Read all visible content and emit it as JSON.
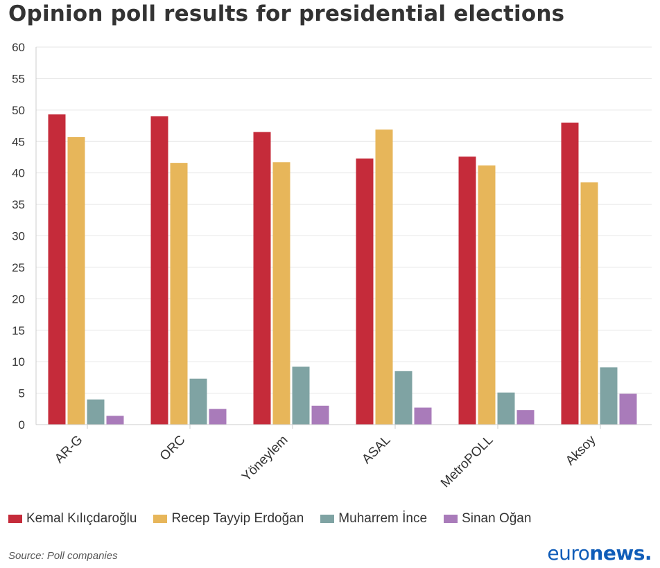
{
  "title": "Opinion poll results for presidential elections",
  "source": "Source: Poll companies",
  "logo": {
    "part1": "euro",
    "part2": "news."
  },
  "colors": {
    "series": [
      "#c52b3a",
      "#e7b65a",
      "#7fa3a3",
      "#a97bba"
    ],
    "grid": "#e6e6e6",
    "axis_text": "#333333"
  },
  "chart_data": {
    "type": "bar",
    "title": "Opinion poll results for presidential elections",
    "categories": [
      "AR-G",
      "ORC",
      "Yöneylem",
      "ASAL",
      "MetroPOLL",
      "Aksoy"
    ],
    "series": [
      {
        "name": "Kemal Kılıçdaroğlu",
        "values": [
          49.3,
          49.0,
          46.5,
          42.3,
          42.6,
          48.0
        ]
      },
      {
        "name": "Recep Tayyip Erdoğan",
        "values": [
          45.7,
          41.6,
          41.7,
          46.9,
          41.2,
          38.5
        ]
      },
      {
        "name": "Muharrem İnce",
        "values": [
          4.0,
          7.3,
          9.2,
          8.5,
          5.1,
          9.1
        ]
      },
      {
        "name": "Sinan Oğan",
        "values": [
          1.4,
          2.5,
          3.0,
          2.7,
          2.3,
          4.9
        ]
      }
    ],
    "ylim": [
      0,
      60
    ],
    "yticks": [
      "0",
      "5",
      "10",
      "15",
      "20",
      "25",
      "30",
      "35",
      "40",
      "45",
      "50",
      "55",
      "60"
    ],
    "grid": true,
    "legend": "bottom"
  }
}
